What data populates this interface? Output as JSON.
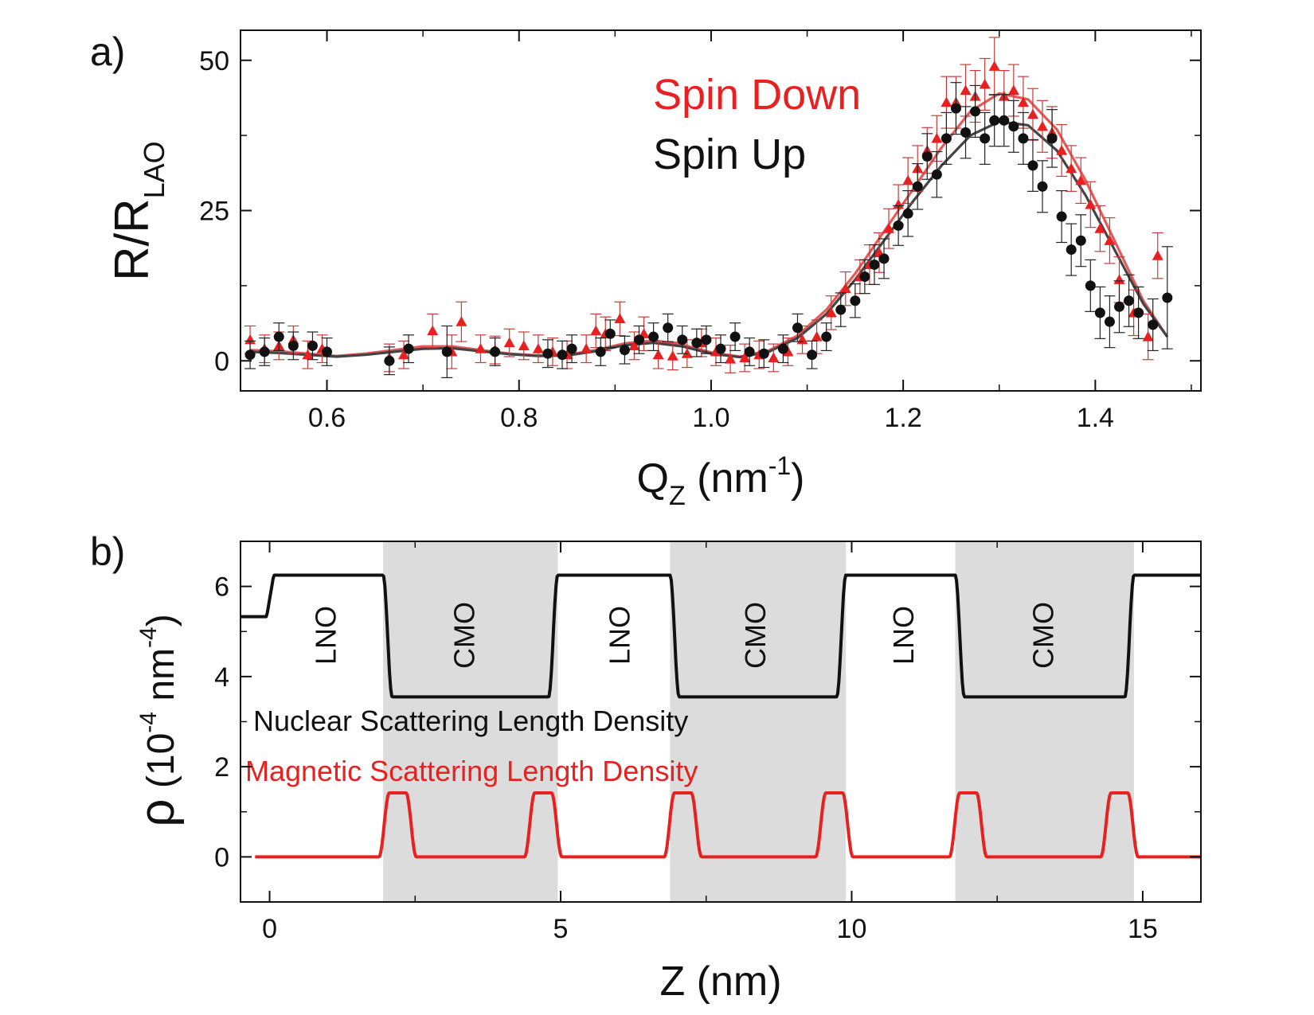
{
  "chart_data": [
    {
      "panel_label": "a)",
      "type": "scatter",
      "xlabel": "Q",
      "xlabel_sub": "Z",
      "xlabel_unit_open": " (nm",
      "xlabel_sup": "-1",
      "xlabel_unit_close": ")",
      "ylabel": "R/R",
      "ylabel_sub": "LAO",
      "xlim": [
        0.51,
        1.51
      ],
      "ylim": [
        -5,
        55
      ],
      "xticks": [
        0.6,
        0.8,
        1.0,
        1.2,
        1.4
      ],
      "xtick_labels": [
        "0.6",
        "0.8",
        "1.0",
        "1.2",
        "1.4"
      ],
      "yticks": [
        0,
        25,
        50
      ],
      "ytick_labels": [
        "0",
        "25",
        "50"
      ],
      "legend": [
        {
          "label": "Spin Down",
          "color": "#e8201f"
        },
        {
          "label": "Spin Up",
          "color": "#111111"
        }
      ],
      "series": [
        {
          "name": "Spin Down",
          "marker": "triangle",
          "color": "#e8201f",
          "errcolor": "#c83a3a",
          "fitcolor": "#e85858",
          "x": [
            0.52,
            0.535,
            0.55,
            0.565,
            0.58,
            0.595,
            0.665,
            0.68,
            0.71,
            0.73,
            0.74,
            0.76,
            0.775,
            0.79,
            0.805,
            0.82,
            0.835,
            0.85,
            0.87,
            0.88,
            0.89,
            0.905,
            0.92,
            0.93,
            0.945,
            0.96,
            0.975,
            0.99,
            1.005,
            1.02,
            1.035,
            1.05,
            1.065,
            1.08,
            1.095,
            1.11,
            1.125,
            1.14,
            1.155,
            1.165,
            1.175,
            1.185,
            1.195,
            1.205,
            1.215,
            1.225,
            1.235,
            1.245,
            1.255,
            1.265,
            1.275,
            1.285,
            1.295,
            1.305,
            1.315,
            1.325,
            1.335,
            1.345,
            1.355,
            1.365,
            1.375,
            1.385,
            1.395,
            1.405,
            1.415,
            1.425,
            1.44,
            1.455,
            1.465
          ],
          "y": [
            3.5,
            2,
            2.5,
            3.5,
            1,
            2,
            0.5,
            1,
            5,
            1.5,
            6.5,
            2,
            1.8,
            3,
            2.5,
            2,
            1.5,
            1,
            2,
            5,
            4.5,
            7,
            2.5,
            4.5,
            1,
            0.8,
            1.2,
            3,
            1.5,
            0.3,
            0.5,
            1,
            0.5,
            1.5,
            3.5,
            4,
            8,
            12,
            14,
            16,
            18,
            22,
            26,
            30,
            32,
            35,
            37,
            43,
            43,
            45,
            44,
            46,
            49,
            44,
            45,
            43,
            41,
            39,
            38,
            35,
            32,
            30,
            26,
            22,
            20,
            13.5,
            8,
            4,
            17.5
          ],
          "err": [
            2.3,
            2.3,
            2.3,
            2.3,
            2.3,
            2.3,
            2.3,
            2.3,
            2.8,
            2.8,
            3.3,
            2.3,
            2.3,
            2.3,
            2.3,
            2.3,
            2.3,
            2.3,
            2.3,
            2.8,
            2.8,
            2.8,
            2.3,
            2.8,
            2.3,
            2.3,
            2.3,
            2.3,
            2.3,
            2.3,
            2.3,
            2.3,
            2.3,
            2.3,
            2.3,
            2.8,
            2.8,
            2.8,
            2.8,
            3.3,
            3.3,
            3.3,
            3.3,
            3.8,
            3.8,
            3.8,
            3.8,
            4.3,
            4.3,
            4.3,
            4.3,
            4.3,
            4.8,
            4.3,
            4.3,
            4.3,
            4.3,
            4.3,
            4.3,
            4.3,
            3.8,
            3.8,
            3.8,
            3.8,
            3.8,
            3.8,
            3.8,
            3.8,
            3.8
          ],
          "fit_x": [
            0.52,
            0.55,
            0.58,
            0.61,
            0.64,
            0.67,
            0.7,
            0.73,
            0.76,
            0.79,
            0.82,
            0.85,
            0.88,
            0.91,
            0.94,
            0.97,
            1.0,
            1.03,
            1.06,
            1.09,
            1.12,
            1.15,
            1.18,
            1.21,
            1.24,
            1.27,
            1.3,
            1.33,
            1.36,
            1.39,
            1.42,
            1.45,
            1.475
          ],
          "fit_y": [
            1.8,
            1.6,
            1.2,
            0.8,
            1.2,
            1.8,
            2.4,
            2.4,
            1.8,
            1.2,
            0.9,
            1.0,
            1.8,
            2.9,
            3.4,
            2.7,
            1.4,
            0.7,
            1.7,
            4.2,
            8.5,
            14.5,
            21.5,
            28.5,
            35.5,
            41.5,
            44.5,
            43.5,
            38.5,
            30,
            20,
            10,
            4
          ]
        },
        {
          "name": "Spin Up",
          "marker": "circle",
          "color": "#111111",
          "errcolor": "#222222",
          "fitcolor": "#444444",
          "x": [
            0.52,
            0.535,
            0.55,
            0.565,
            0.585,
            0.6,
            0.665,
            0.685,
            0.725,
            0.775,
            0.83,
            0.845,
            0.855,
            0.885,
            0.895,
            0.91,
            0.925,
            0.94,
            0.955,
            0.97,
            0.985,
            0.995,
            1.01,
            1.025,
            1.04,
            1.055,
            1.075,
            1.09,
            1.105,
            1.12,
            1.135,
            1.15,
            1.16,
            1.17,
            1.18,
            1.195,
            1.205,
            1.215,
            1.225,
            1.235,
            1.245,
            1.255,
            1.265,
            1.275,
            1.285,
            1.295,
            1.305,
            1.315,
            1.325,
            1.335,
            1.345,
            1.355,
            1.365,
            1.375,
            1.385,
            1.395,
            1.405,
            1.415,
            1.425,
            1.435,
            1.445,
            1.46,
            1.475
          ],
          "y": [
            1,
            1.5,
            4,
            2.5,
            2.5,
            1.5,
            0,
            2,
            1.5,
            1.5,
            1.2,
            1,
            2,
            1.5,
            4.5,
            1.8,
            3.5,
            4,
            5.5,
            3.5,
            3,
            3.5,
            2,
            4,
            1.5,
            1.2,
            2,
            5.5,
            1,
            4,
            8.5,
            10,
            14,
            16,
            17,
            22.5,
            24.5,
            29,
            34,
            31,
            37,
            42,
            38,
            41.5,
            37,
            40,
            40,
            39,
            37,
            32.5,
            29,
            37,
            24,
            18.5,
            20,
            12.5,
            8,
            6.5,
            9,
            10,
            8,
            6,
            10.5
          ],
          "err": [
            2.3,
            2.3,
            2.3,
            2.3,
            2.3,
            2.3,
            2.3,
            2.3,
            4.3,
            2.3,
            2.3,
            2.3,
            2.3,
            2.3,
            2.3,
            2.3,
            2.3,
            2.3,
            2.3,
            2.3,
            2.3,
            2.3,
            2.3,
            2.3,
            2.3,
            2.3,
            2.3,
            2.3,
            2.3,
            2.3,
            2.8,
            2.8,
            2.8,
            3.3,
            3.3,
            3.3,
            3.8,
            3.8,
            3.8,
            3.8,
            4.3,
            4.3,
            4.3,
            4.3,
            4.3,
            4.3,
            4.3,
            4.3,
            4.3,
            4.3,
            4.3,
            4.8,
            4.3,
            4.3,
            4.3,
            4.3,
            4.3,
            4.3,
            4.3,
            4.3,
            4.3,
            4.3,
            8.5
          ],
          "fit_x": [
            0.52,
            0.55,
            0.58,
            0.61,
            0.64,
            0.67,
            0.7,
            0.73,
            0.76,
            0.79,
            0.82,
            0.85,
            0.88,
            0.91,
            0.94,
            0.97,
            1.0,
            1.03,
            1.06,
            1.09,
            1.12,
            1.15,
            1.18,
            1.21,
            1.24,
            1.27,
            1.3,
            1.33,
            1.36,
            1.39,
            1.42,
            1.45,
            1.475
          ],
          "fit_y": [
            1.5,
            1.3,
            1.0,
            0.7,
            1.0,
            1.5,
            2.0,
            2.1,
            1.6,
            1.1,
            0.8,
            0.9,
            1.6,
            2.6,
            3.0,
            2.4,
            1.2,
            0.6,
            1.5,
            3.8,
            7.8,
            13.5,
            20,
            26.5,
            32.5,
            37.5,
            39.8,
            39.2,
            35,
            27.5,
            18.5,
            9.5,
            4
          ]
        }
      ]
    },
    {
      "panel_label": "b)",
      "type": "line",
      "xlabel": "Z (nm)",
      "ylabel_rho": "ρ",
      "ylabel_open": " (10",
      "ylabel_sup1": "-4",
      "ylabel_mid": " nm",
      "ylabel_sup2": "-4",
      "ylabel_close": ")",
      "xlim": [
        -0.5,
        16
      ],
      "ylim": [
        -1,
        7
      ],
      "xticks": [
        0,
        5,
        10,
        15
      ],
      "xtick_labels": [
        "0",
        "5",
        "10",
        "15"
      ],
      "yticks": [
        0,
        2,
        4,
        6
      ],
      "ytick_labels": [
        "0",
        "2",
        "4",
        "6"
      ],
      "shaded_regions": [
        [
          1.95,
          4.95
        ],
        [
          6.88,
          9.9
        ],
        [
          11.78,
          14.85
        ]
      ],
      "layer_labels": [
        {
          "text": "LNO",
          "x": 0.97
        },
        {
          "text": "CMO",
          "x": 3.35
        },
        {
          "text": "LNO",
          "x": 6.02
        },
        {
          "text": "CMO",
          "x": 8.35
        },
        {
          "text": "LNO",
          "x": 10.9
        },
        {
          "text": "CMO",
          "x": 13.3
        }
      ],
      "legend": [
        {
          "label": "Nuclear Scattering Length Density",
          "color": "#111111"
        },
        {
          "label": "Magnetic Scattering Length Density",
          "color": "#e8201f"
        }
      ],
      "series": [
        {
          "name": "Nuclear Scattering Length Density",
          "color": "#111111",
          "baseline": 6.25,
          "substrate": 5.33,
          "substrate_end": -0.05,
          "dip": 3.55,
          "dips": [
            [
              1.95,
              4.95
            ],
            [
              6.88,
              9.9
            ],
            [
              11.78,
              14.85
            ]
          ]
        },
        {
          "name": "Magnetic Scattering Length Density",
          "color": "#e8201f",
          "peak": 1.42,
          "start": -0.25,
          "peaks": [
            2.2,
            4.7,
            7.1,
            9.7,
            12.0,
            14.6
          ]
        }
      ]
    }
  ]
}
